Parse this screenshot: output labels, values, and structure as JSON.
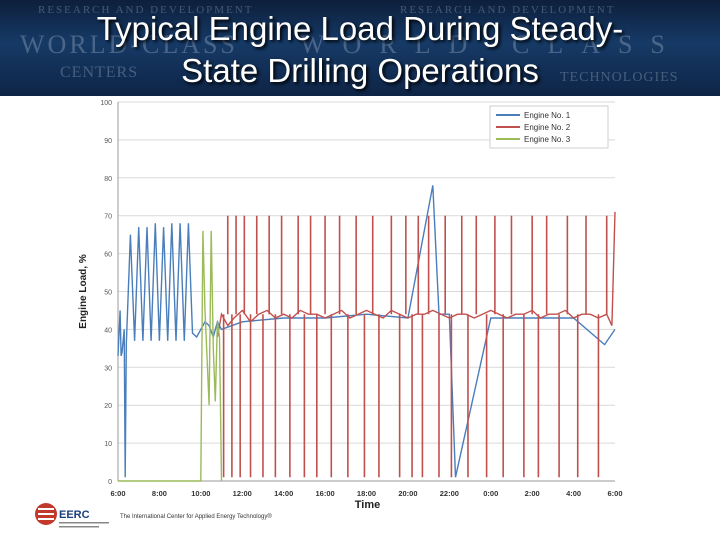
{
  "slide": {
    "title_line1": "Typical Engine Load During Steady-",
    "title_line2": "State Drilling Operations",
    "background_words": {
      "w1": "RESEARCH AND DEVELOPMENT",
      "w2": "RESEARCH AND DEVELOPMENT",
      "w3": "WORLD-CLASS",
      "w4": "WORLD-CLASS",
      "w5": "CENTERS",
      "w6": "TECHNOLOGIES"
    },
    "footer": {
      "logo_text": "EERC",
      "tagline": "The International Center for Applied Energy Technology®"
    }
  },
  "colors": {
    "engine1": "#4a7ebb",
    "engine2": "#c0504d",
    "engine3": "#9bbb59",
    "grid": "#d9d9d9",
    "axis_text": "#555555"
  },
  "chart_data": {
    "type": "line",
    "title": "",
    "xlabel": "Time",
    "ylabel": "Engine Load, %",
    "ylim": [
      0,
      100
    ],
    "yticks": [
      0,
      10,
      20,
      30,
      40,
      50,
      60,
      70,
      80,
      90,
      100
    ],
    "xlim": [
      6,
      30
    ],
    "xticks": [
      6,
      8,
      10,
      12,
      14,
      16,
      18,
      20,
      22,
      24,
      26,
      28,
      30
    ],
    "xtick_labels": [
      "6:00",
      "8:00",
      "10:00",
      "12:00",
      "14:00",
      "16:00",
      "18:00",
      "20:00",
      "22:00",
      "0:00",
      "2:00",
      "4:00",
      "6:00"
    ],
    "grid": "horizontal",
    "legend_position": "top-right",
    "series": [
      {
        "name": "Engine No. 1",
        "x": [
          6,
          6.1,
          6.15,
          6.2,
          6.3,
          6.35,
          6.4,
          6.6,
          6.8,
          7.0,
          7.2,
          7.4,
          7.6,
          7.8,
          8.0,
          8.2,
          8.4,
          8.6,
          8.8,
          9.0,
          9.2,
          9.4,
          9.6,
          9.8,
          10.0,
          10.2,
          10.4,
          10.6,
          10.8,
          11.0,
          12.0,
          14.0,
          16.0,
          18.0,
          20.0,
          21.2,
          21.5,
          22.0,
          22.3,
          24.0,
          26.0,
          28.0,
          29.5,
          30.0
        ],
        "y": [
          33,
          45,
          33,
          34,
          40,
          1,
          36,
          65,
          37,
          67,
          37,
          67,
          37,
          68,
          37,
          67,
          37,
          68,
          37,
          68,
          37,
          68,
          39,
          38,
          40,
          42,
          41,
          38,
          42,
          40,
          42,
          43,
          43,
          44,
          43,
          78,
          44,
          44,
          1,
          43,
          43,
          43,
          36,
          40
        ]
      },
      {
        "name": "Engine No. 2",
        "x": [
          10.8,
          11.0,
          11.3,
          11.6,
          12.0,
          12.4,
          12.8,
          13.2,
          13.6,
          14.0,
          14.4,
          14.8,
          15.2,
          15.6,
          16.0,
          16.4,
          16.8,
          17.2,
          17.6,
          18.0,
          18.4,
          18.8,
          19.2,
          19.6,
          20.0,
          20.4,
          20.8,
          21.2,
          21.6,
          22.0,
          22.4,
          22.8,
          23.2,
          23.6,
          24.0,
          24.4,
          24.8,
          25.2,
          25.6,
          26.0,
          26.4,
          26.8,
          27.2,
          27.6,
          28.0,
          28.4,
          28.8,
          29.2,
          29.6,
          29.85,
          30.0
        ],
        "y": [
          38,
          44,
          41,
          43,
          45,
          42,
          44,
          45,
          43,
          44,
          43,
          45,
          44,
          44,
          43,
          44,
          45,
          43,
          44,
          45,
          44,
          43,
          45,
          44,
          43,
          44,
          44,
          45,
          44,
          43,
          44,
          44,
          43,
          44,
          45,
          44,
          43,
          44,
          44,
          45,
          43,
          44,
          44,
          45,
          43,
          44,
          44,
          43,
          44,
          41,
          71
        ]
      },
      {
        "name": "Engine No. 3",
        "x": [
          6,
          10.0,
          10.1,
          10.2,
          10.4,
          10.5,
          10.6,
          10.7,
          10.8,
          10.9,
          11.0
        ],
        "y": [
          0,
          0,
          66,
          45,
          20,
          66,
          35,
          21,
          42,
          38,
          0
        ]
      }
    ],
    "drops": [
      {
        "series": "Engine No. 2",
        "x": [
          11.1,
          11.5,
          11.9,
          12.4,
          13.0,
          13.6,
          14.3,
          15.0,
          15.6,
          16.3,
          17.1,
          17.9,
          18.6,
          19.6,
          20.2,
          20.7,
          21.5,
          22.1,
          22.9,
          23.8,
          24.6,
          25.6,
          26.3,
          27.3,
          28.2,
          29.2
        ],
        "y": 1
      },
      {
        "series": "Engine No. 2",
        "x": [
          11.3,
          11.7,
          12.1,
          12.7,
          13.3,
          13.9,
          14.7,
          15.3,
          16.0,
          16.7,
          17.5,
          18.3,
          19.2,
          19.9,
          20.5,
          21.0,
          21.8,
          22.6,
          23.3,
          24.2,
          25.0,
          26.0,
          26.7,
          27.7,
          28.6,
          29.6
        ],
        "y": 70
      }
    ]
  }
}
